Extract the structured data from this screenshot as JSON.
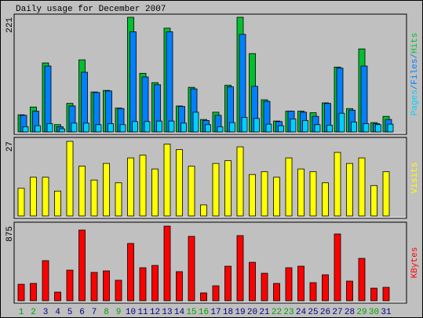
{
  "chart_data": [
    {
      "type": "bar",
      "title": "Daily usage for December 2007",
      "legend_separator": "/",
      "ylim": [
        0,
        221
      ],
      "yticks": [
        221
      ],
      "series": [
        {
          "name": "Hits",
          "color": "#00c030",
          "values": [
            33,
            48,
            133,
            14,
            55,
            139,
            77,
            80,
            46,
            221,
            113,
            95,
            200,
            50,
            86,
            24,
            38,
            90,
            221,
            151,
            62,
            21,
            40,
            40,
            37,
            56,
            125,
            45,
            160,
            18,
            30
          ]
        },
        {
          "name": "Files",
          "color": "#0080ff",
          "values": [
            32,
            40,
            127,
            10,
            50,
            115,
            76,
            79,
            45,
            193,
            106,
            91,
            193,
            49,
            83,
            22,
            32,
            87,
            188,
            88,
            59,
            20,
            40,
            38,
            30,
            55,
            123,
            42,
            127,
            16,
            24
          ]
        },
        {
          "name": "Pages",
          "color": "#00d0ff",
          "values": [
            10,
            12,
            16,
            6,
            17,
            17,
            14,
            16,
            14,
            20,
            20,
            21,
            21,
            17,
            38,
            14,
            10,
            18,
            28,
            26,
            15,
            12,
            25,
            22,
            14,
            13,
            36,
            19,
            16,
            14,
            15
          ]
        }
      ]
    },
    {
      "type": "bar",
      "ylim": [
        0,
        27
      ],
      "yticks": [
        27
      ],
      "series": [
        {
          "name": "Visits",
          "color": "#ffff00",
          "values": [
            10,
            14,
            14,
            9,
            27,
            18,
            13,
            19,
            12,
            21,
            22,
            17,
            26,
            24,
            18,
            4,
            19,
            20,
            25,
            15,
            16,
            14,
            21,
            17,
            16,
            12,
            23,
            19,
            21,
            11,
            16
          ]
        }
      ]
    },
    {
      "type": "bar",
      "ylim": [
        0,
        875
      ],
      "yticks": [
        875
      ],
      "series": [
        {
          "name": "KBytes",
          "color": "#ff0000",
          "values": [
            193,
            203,
            470,
            101,
            359,
            829,
            332,
            350,
            240,
            672,
            387,
            414,
            875,
            341,
            755,
            92,
            175,
            405,
            764,
            451,
            322,
            203,
            387,
            405,
            212,
            304,
            783,
            230,
            497,
            147,
            157
          ]
        }
      ],
      "categories": [
        "1",
        "2",
        "3",
        "4",
        "5",
        "6",
        "7",
        "8",
        "9",
        "10",
        "11",
        "12",
        "13",
        "14",
        "15",
        "16",
        "17",
        "18",
        "19",
        "20",
        "21",
        "22",
        "23",
        "24",
        "25",
        "26",
        "27",
        "28",
        "29",
        "30",
        "31"
      ],
      "category_colors": [
        "#00a000",
        "#00a000",
        "#000080",
        "#000080",
        "#000080",
        "#000080",
        "#000080",
        "#00a000",
        "#00a000",
        "#000080",
        "#000080",
        "#000080",
        "#000080",
        "#000080",
        "#00a000",
        "#00a000",
        "#000080",
        "#000080",
        "#000080",
        "#000080",
        "#000080",
        "#00a000",
        "#00a000",
        "#000080",
        "#000080",
        "#000080",
        "#000080",
        "#000080",
        "#00a000",
        "#00a000",
        "#000080"
      ]
    }
  ]
}
